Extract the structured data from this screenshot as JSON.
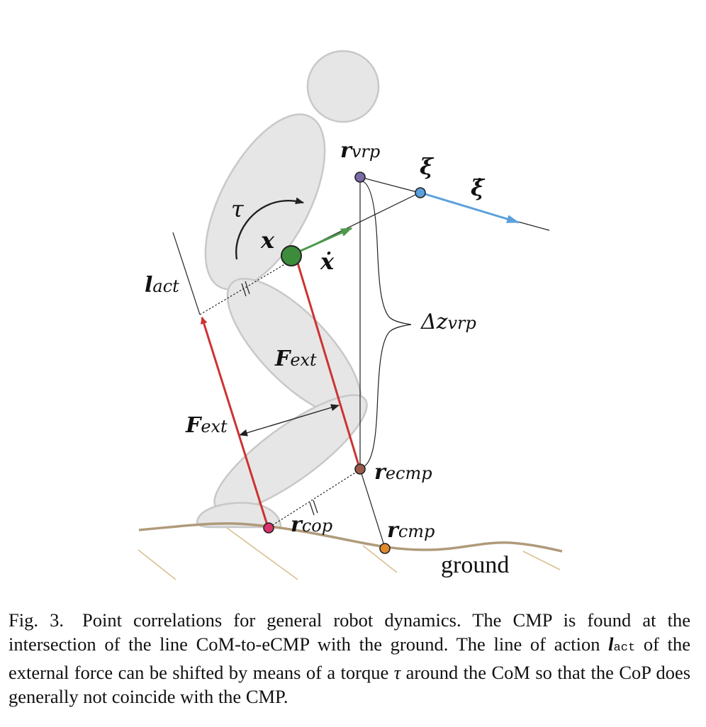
{
  "labels": {
    "r_vrp": {
      "sym": "r",
      "sub": "vrp"
    },
    "xi": "ξ",
    "xi_dot": "ξ̇",
    "tau": "τ",
    "x": "x",
    "x_dot": "ẋ",
    "l_act": {
      "sym": "l",
      "sub": "act"
    },
    "delta_z_vrp": {
      "sym": "Δz",
      "sub": "vrp"
    },
    "F_ext_upper": {
      "sym": "F",
      "sub": "ext"
    },
    "F_ext_lower": {
      "sym": "F",
      "sub": "ext"
    },
    "r_ecmp": {
      "sym": "r",
      "sub": "ecmp"
    },
    "r_cop": {
      "sym": "r",
      "sub": "cop"
    },
    "r_cmp": {
      "sym": "r",
      "sub": "cmp"
    },
    "ground": "ground"
  },
  "colors": {
    "body": "#e6e6e6",
    "body_stroke": "#c8c8c8",
    "com": "#3c8c3c",
    "force": "#cc3333",
    "velocity_arrow": "#4c9a4c",
    "xi_arrow": "#5aa0dc",
    "vrp": "#7a6aa8",
    "xi_point": "#5aa0dc",
    "ecmp": "#9a5a48",
    "cop": "#d8336a",
    "cmp": "#e08a2c",
    "ground": "#b09a7a",
    "hatch": "#d8c090"
  },
  "caption": {
    "label": "Fig. 3.",
    "part1": "Point correlations for general robot dynamics. The CMP is found at the intersection of the line CoM-to-eCMP with the ground. The line of action",
    "l_sym": "l",
    "l_sub": "act",
    "part2": "of the external force can be shifted by means of a torque",
    "tau": "τ",
    "part3": "around the CoM so that the CoP does generally not coincide with the CMP."
  }
}
